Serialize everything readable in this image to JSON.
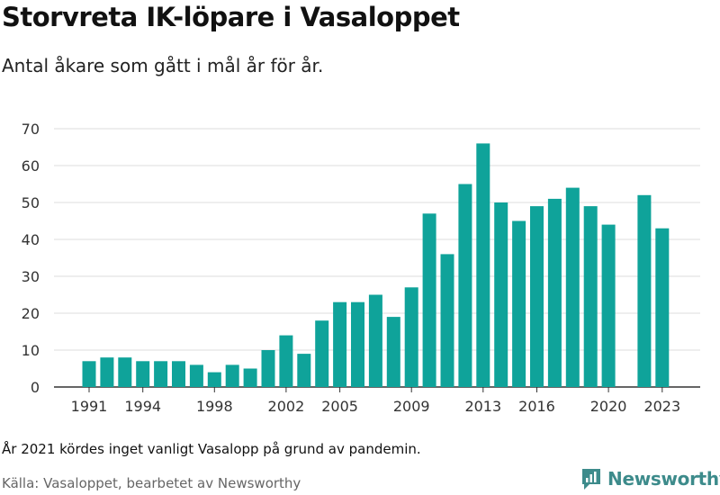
{
  "title": "Storvreta IK-löpare i Vasaloppet",
  "subtitle": "Antal åkare som gått i mål år för år.",
  "footnote": "År 2021 kördes inget vanligt Vasalopp på grund av pandemin.",
  "source": "Källa: Vasaloppet, bearbetet av Newsworthy",
  "logo": {
    "text": "Newsworthy",
    "icon": "chart-logo-icon",
    "color": "#3d8b8b"
  },
  "colors": {
    "bar": "#0fa39a",
    "grid": "#dddddd",
    "axis": "#333333"
  },
  "chart_data": {
    "type": "bar",
    "title": "Storvreta IK-löpare i Vasaloppet",
    "subtitle": "Antal åkare som gått i mål år för år.",
    "xlabel": "",
    "ylabel": "",
    "ylim": [
      0,
      70
    ],
    "yticks": [
      0,
      10,
      20,
      30,
      40,
      50,
      60,
      70
    ],
    "xticks": [
      1991,
      1994,
      1998,
      2002,
      2005,
      2009,
      2013,
      2016,
      2020,
      2023
    ],
    "grid": true,
    "categories": [
      1991,
      1992,
      1993,
      1994,
      1995,
      1996,
      1997,
      1998,
      1999,
      2000,
      2001,
      2002,
      2003,
      2004,
      2005,
      2006,
      2007,
      2008,
      2009,
      2010,
      2011,
      2012,
      2013,
      2014,
      2015,
      2016,
      2017,
      2018,
      2019,
      2020,
      2021,
      2022,
      2023
    ],
    "values": [
      7,
      8,
      8,
      7,
      7,
      7,
      6,
      4,
      6,
      5,
      10,
      14,
      9,
      18,
      23,
      23,
      25,
      19,
      27,
      47,
      36,
      55,
      66,
      50,
      45,
      49,
      51,
      54,
      49,
      44,
      null,
      52,
      43
    ]
  }
}
